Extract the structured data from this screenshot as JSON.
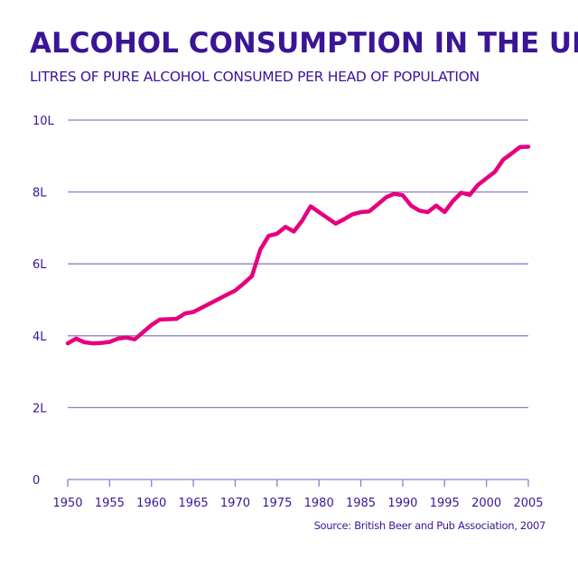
{
  "chart_data": {
    "type": "line",
    "title": "ALCOHOL CONSUMPTION IN THE UK",
    "subtitle": "LITRES OF PURE ALCOHOL CONSUMED PER HEAD OF POPULATION",
    "source": "Source: British Beer and Pub Association, 2007",
    "xlabel": "",
    "ylabel": "",
    "xlim": [
      1950,
      2005
    ],
    "ylim": [
      0,
      10
    ],
    "grid": true,
    "x_ticks": [
      1950,
      1955,
      1960,
      1965,
      1970,
      1975,
      1980,
      1985,
      1990,
      1995,
      2000,
      2005
    ],
    "x_tick_labels": [
      "1950",
      "1955",
      "1960",
      "1965",
      "1970",
      "1975",
      "1980",
      "1985",
      "1990",
      "1995",
      "2000",
      "2005"
    ],
    "y_ticks": [
      0,
      2,
      4,
      6,
      8,
      10
    ],
    "y_tick_labels": [
      "0",
      "2L",
      "4L",
      "6L",
      "8L",
      "10L"
    ],
    "line_color": "#e6007e",
    "grid_color": "#8a80cc",
    "text_color": "#3a1596",
    "x": [
      1950,
      1951,
      1952,
      1953,
      1954,
      1955,
      1956,
      1957,
      1958,
      1959,
      1960,
      1961,
      1962,
      1963,
      1964,
      1965,
      1966,
      1967,
      1968,
      1969,
      1970,
      1971,
      1972,
      1973,
      1974,
      1975,
      1976,
      1977,
      1978,
      1979,
      1980,
      1981,
      1982,
      1983,
      1984,
      1985,
      1986,
      1987,
      1988,
      1989,
      1990,
      1991,
      1992,
      1993,
      1994,
      1995,
      1996,
      1997,
      1998,
      1999,
      2000,
      2001,
      2002,
      2003,
      2004,
      2005
    ],
    "values": [
      3.79,
      3.92,
      3.82,
      3.79,
      3.8,
      3.83,
      3.92,
      3.95,
      3.9,
      4.1,
      4.3,
      4.45,
      4.46,
      4.47,
      4.62,
      4.66,
      4.78,
      4.9,
      5.02,
      5.14,
      5.26,
      5.45,
      5.66,
      6.4,
      6.78,
      6.84,
      7.03,
      6.9,
      7.2,
      7.6,
      7.44,
      7.28,
      7.12,
      7.24,
      7.38,
      7.44,
      7.46,
      7.65,
      7.85,
      7.95,
      7.91,
      7.62,
      7.48,
      7.44,
      7.62,
      7.44,
      7.75,
      7.98,
      7.92,
      8.2,
      8.38,
      8.56,
      8.9,
      9.07,
      9.25,
      9.26
    ]
  }
}
